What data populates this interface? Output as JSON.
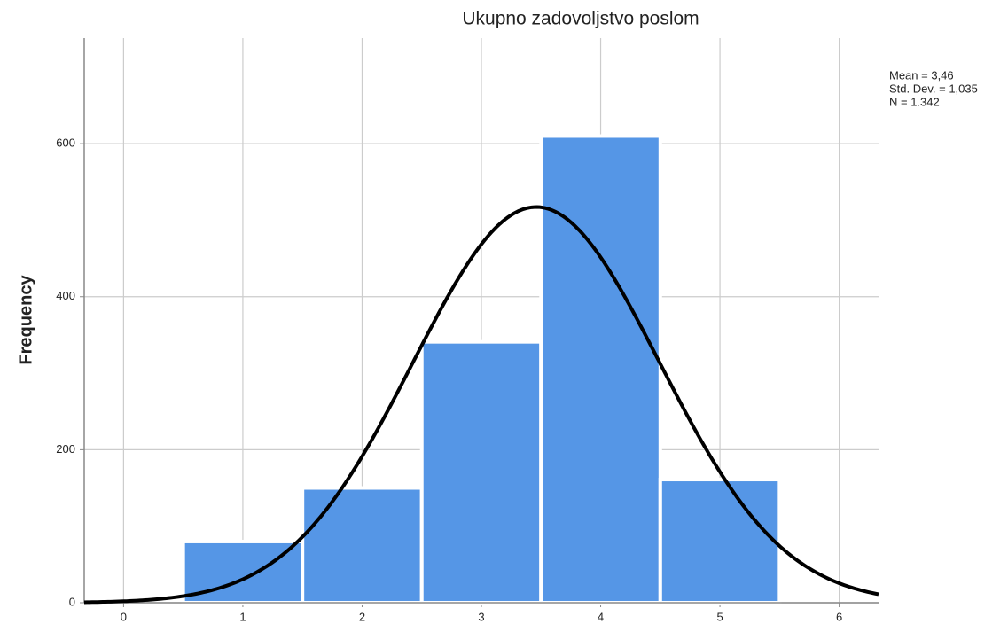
{
  "chart_data": {
    "type": "histogram",
    "title": "Ukupno zadovoljstvo poslom",
    "y_label": "Frequency",
    "bins": [
      0.5,
      1.5,
      2.5,
      3.5,
      4.5,
      5.5
    ],
    "values": [
      80,
      150,
      341,
      610,
      161
    ],
    "color": "#5596e6",
    "xlim": [
      -0.33,
      6.33
    ],
    "xticks": [
      0,
      1,
      2,
      3,
      4,
      5,
      6
    ],
    "ylim": [
      0,
      738
    ],
    "yticks": [
      0,
      200,
      400,
      600
    ],
    "grid": true,
    "normal_curve": {
      "mean": {
        "value": 3.46,
        "label": "Mean = 3,46"
      },
      "std_dev": {
        "value": 1.035,
        "label": "Std. Dev. = 1,035"
      },
      "n": {
        "value": 1342,
        "label": "N = 1.342"
      },
      "color": "#000000"
    }
  }
}
